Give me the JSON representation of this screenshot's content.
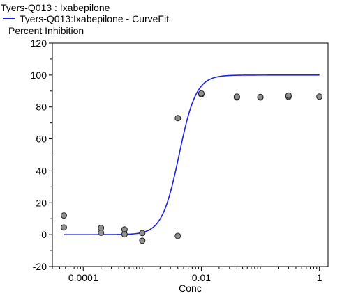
{
  "chart_data": {
    "type": "scatter",
    "title": "Tyers-Q013 : Ixabepilone",
    "ylabel": "Percent Inhibition",
    "xlabel": "Conc",
    "x_scale": "log",
    "xlim": [
      3e-05,
      1.4
    ],
    "ylim": [
      -20,
      120
    ],
    "x_ticks": [
      0.0001,
      0.01,
      1
    ],
    "x_tick_labels": [
      "0.0001",
      "0.01",
      "1"
    ],
    "y_ticks": [
      -20,
      0,
      20,
      40,
      60,
      80,
      100,
      120
    ],
    "y_tick_labels": [
      "-20",
      "0",
      "20",
      "40",
      "60",
      "80",
      "100",
      "120"
    ],
    "grid": false,
    "series": [
      {
        "name": "Tyers-Q013:Ixabepilone - CurveFit",
        "kind": "line",
        "color": "#1f22e6",
        "curve": {
          "bottom": 0,
          "top": 100,
          "ec50": 0.0042,
          "hill": 3.0,
          "x_range": [
            4.7e-05,
            1.0
          ]
        }
      },
      {
        "kind": "scatter",
        "color": "#909090",
        "points": [
          [
            4.7e-05,
            12
          ],
          [
            4.7e-05,
            4.5
          ],
          [
            0.0002,
            4.2
          ],
          [
            0.0002,
            1.2
          ],
          [
            0.0005,
            3.2
          ],
          [
            0.0005,
            0.2
          ],
          [
            0.001,
            1.0
          ],
          [
            0.001,
            -3.8
          ],
          [
            0.004,
            73
          ],
          [
            0.004,
            -0.8
          ],
          [
            0.01,
            88
          ],
          [
            0.01,
            88.5
          ],
          [
            0.04,
            86
          ],
          [
            0.04,
            86.5
          ],
          [
            0.1,
            86
          ],
          [
            0.1,
            86.3
          ],
          [
            0.3,
            86.4
          ],
          [
            0.3,
            87.2
          ],
          [
            1.0,
            86.5
          ]
        ]
      }
    ]
  }
}
